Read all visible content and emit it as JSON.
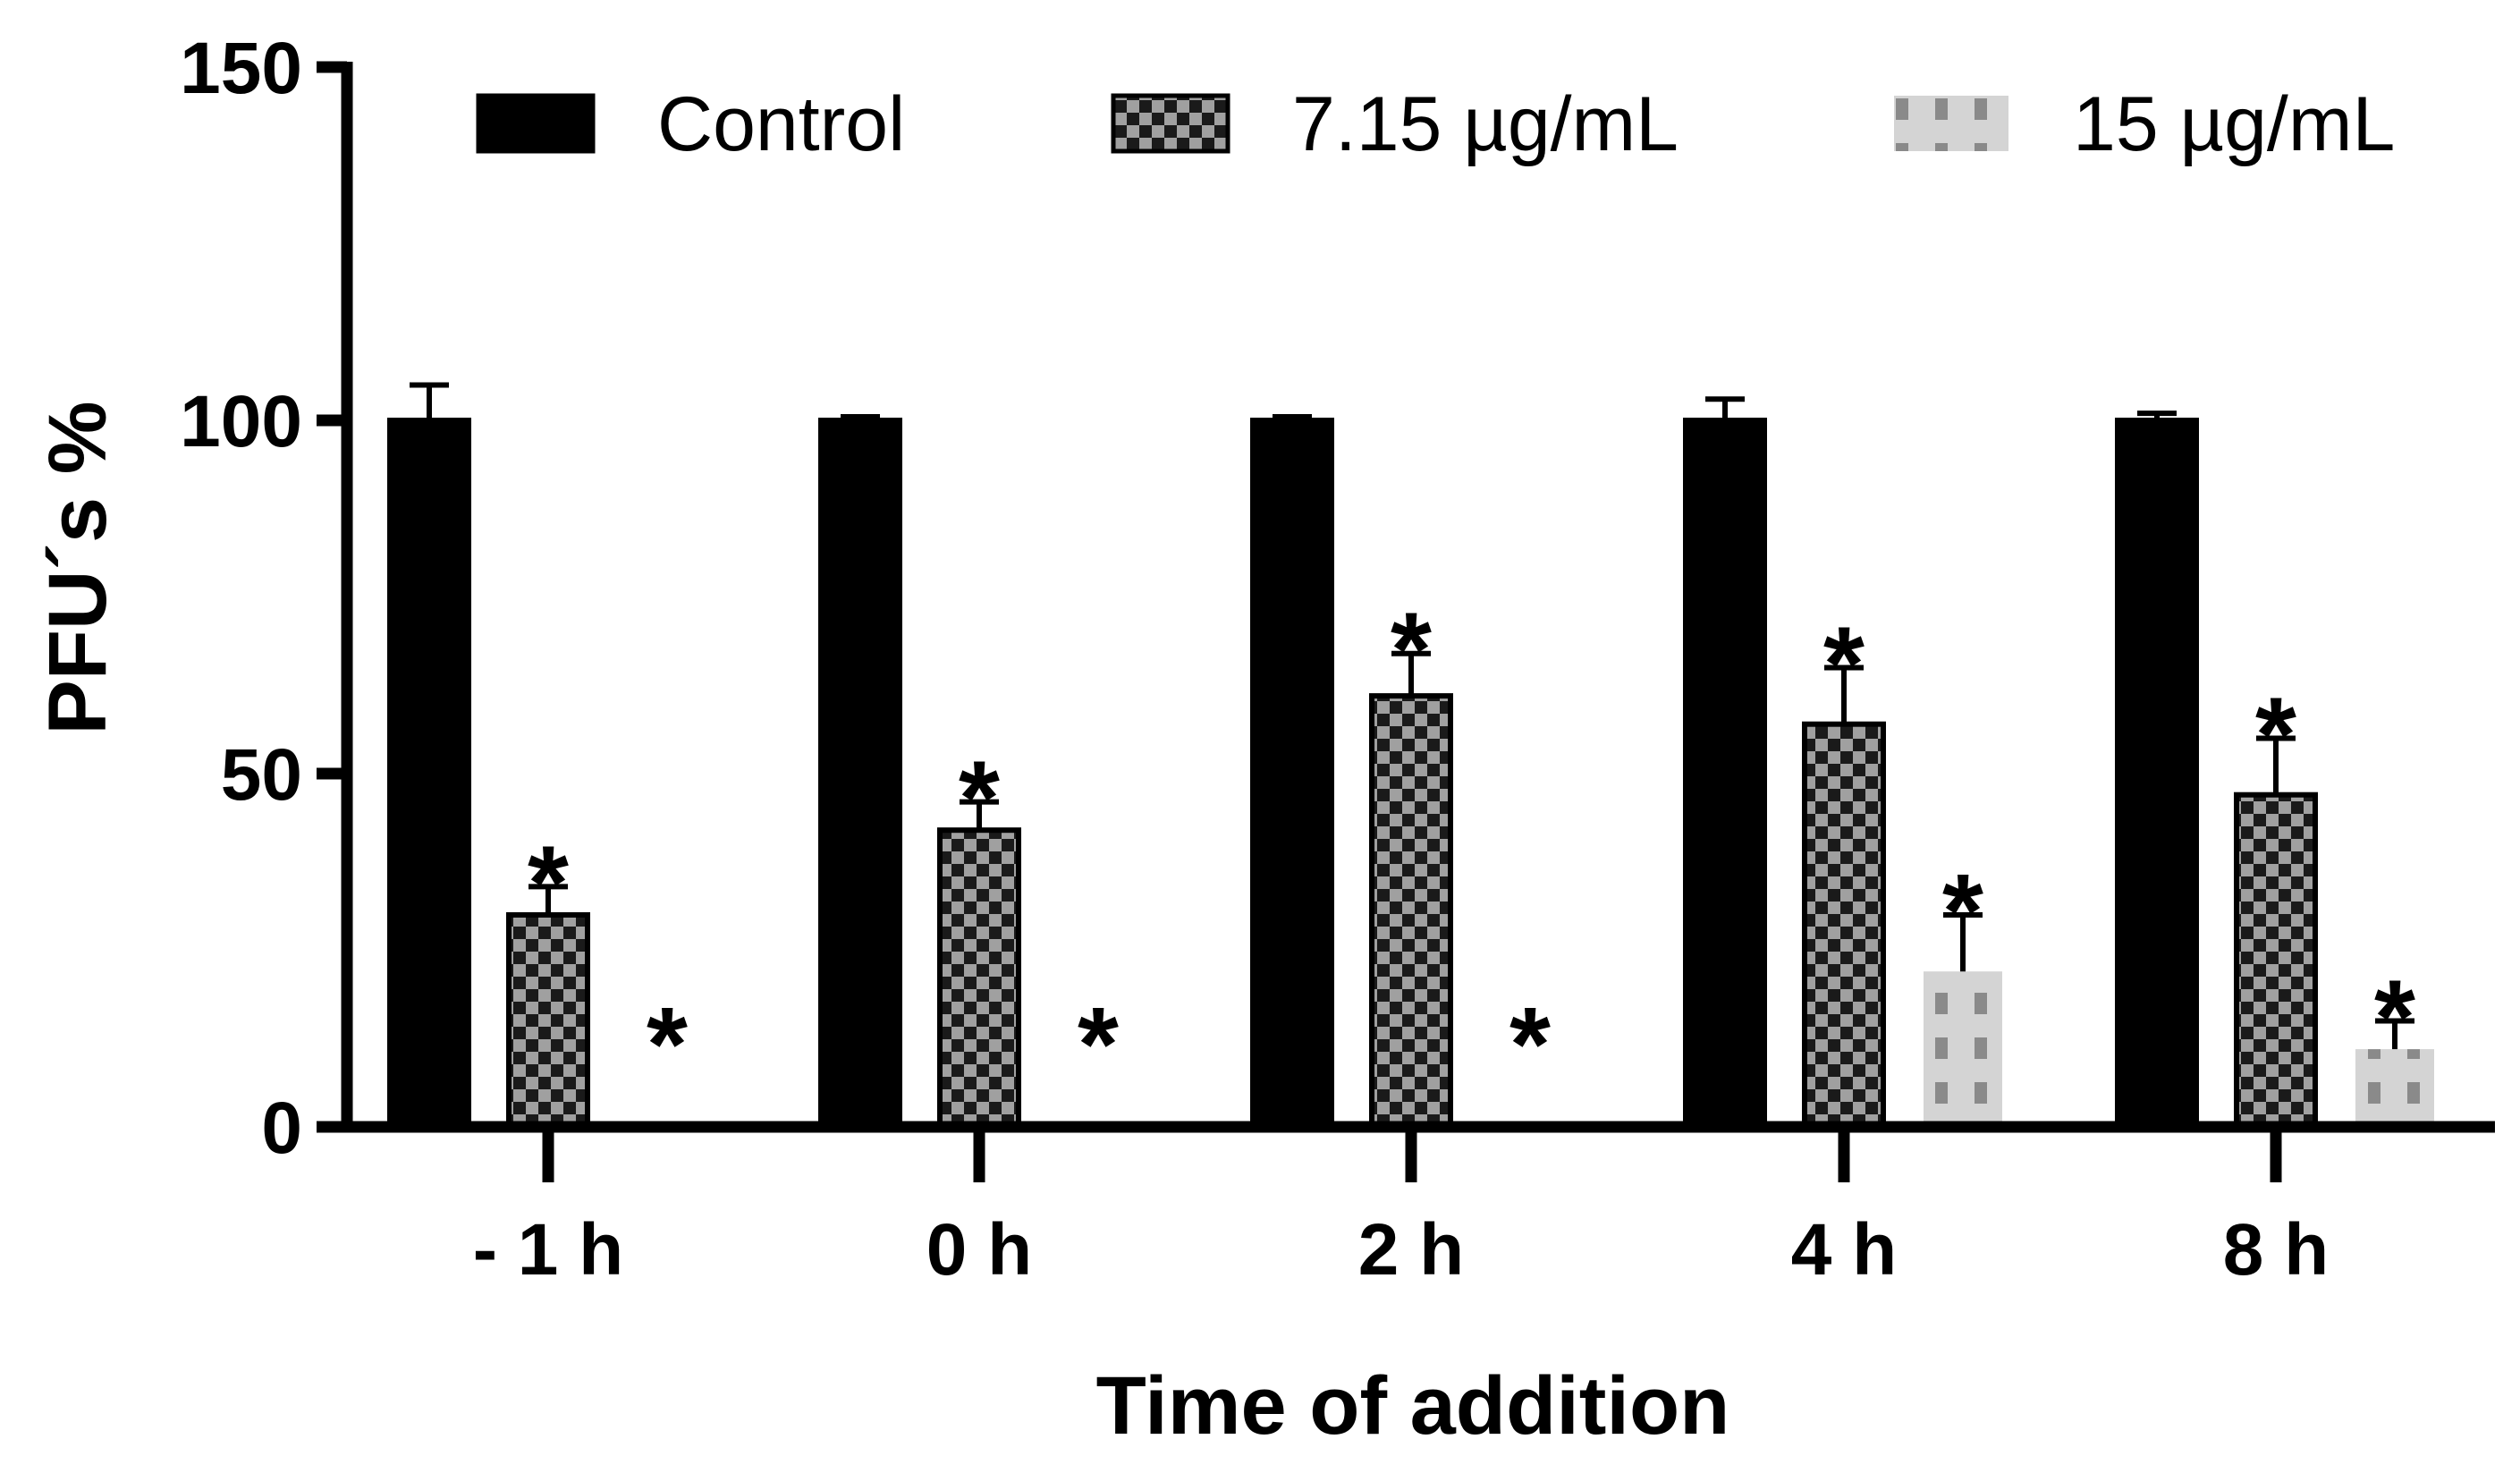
{
  "chart_data": {
    "type": "bar",
    "title": "",
    "xlabel": "Time of addition",
    "ylabel": "PFU´s %",
    "ylim": [
      0,
      150
    ],
    "yticks": [
      0,
      50,
      100,
      150
    ],
    "categories": [
      "- 1 h",
      "0 h",
      "2 h",
      "4 h",
      "8 h"
    ],
    "series": [
      {
        "name": "Control",
        "pattern": "solid",
        "color": "#000000",
        "values": [
          100,
          100,
          100,
          100,
          100
        ],
        "errors": [
          5,
          0.5,
          0.5,
          3,
          1
        ],
        "significant": [
          false,
          false,
          false,
          false,
          false
        ]
      },
      {
        "name": "7.15 µg/mL",
        "pattern": "checkerboard",
        "color": "#a0a0a0",
        "values": [
          30,
          42,
          61,
          57,
          47
        ],
        "errors": [
          4,
          4,
          6,
          8,
          8
        ],
        "significant": [
          true,
          true,
          true,
          true,
          true
        ]
      },
      {
        "name": "15 µg/mL",
        "pattern": "dashes",
        "color": "#d4d4d4",
        "values": [
          0,
          0,
          0,
          22,
          11
        ],
        "errors": [
          0,
          0,
          0,
          8,
          4
        ],
        "significant": [
          true,
          true,
          true,
          true,
          true
        ]
      }
    ],
    "significance_marker": "*",
    "legend_position": "top"
  }
}
